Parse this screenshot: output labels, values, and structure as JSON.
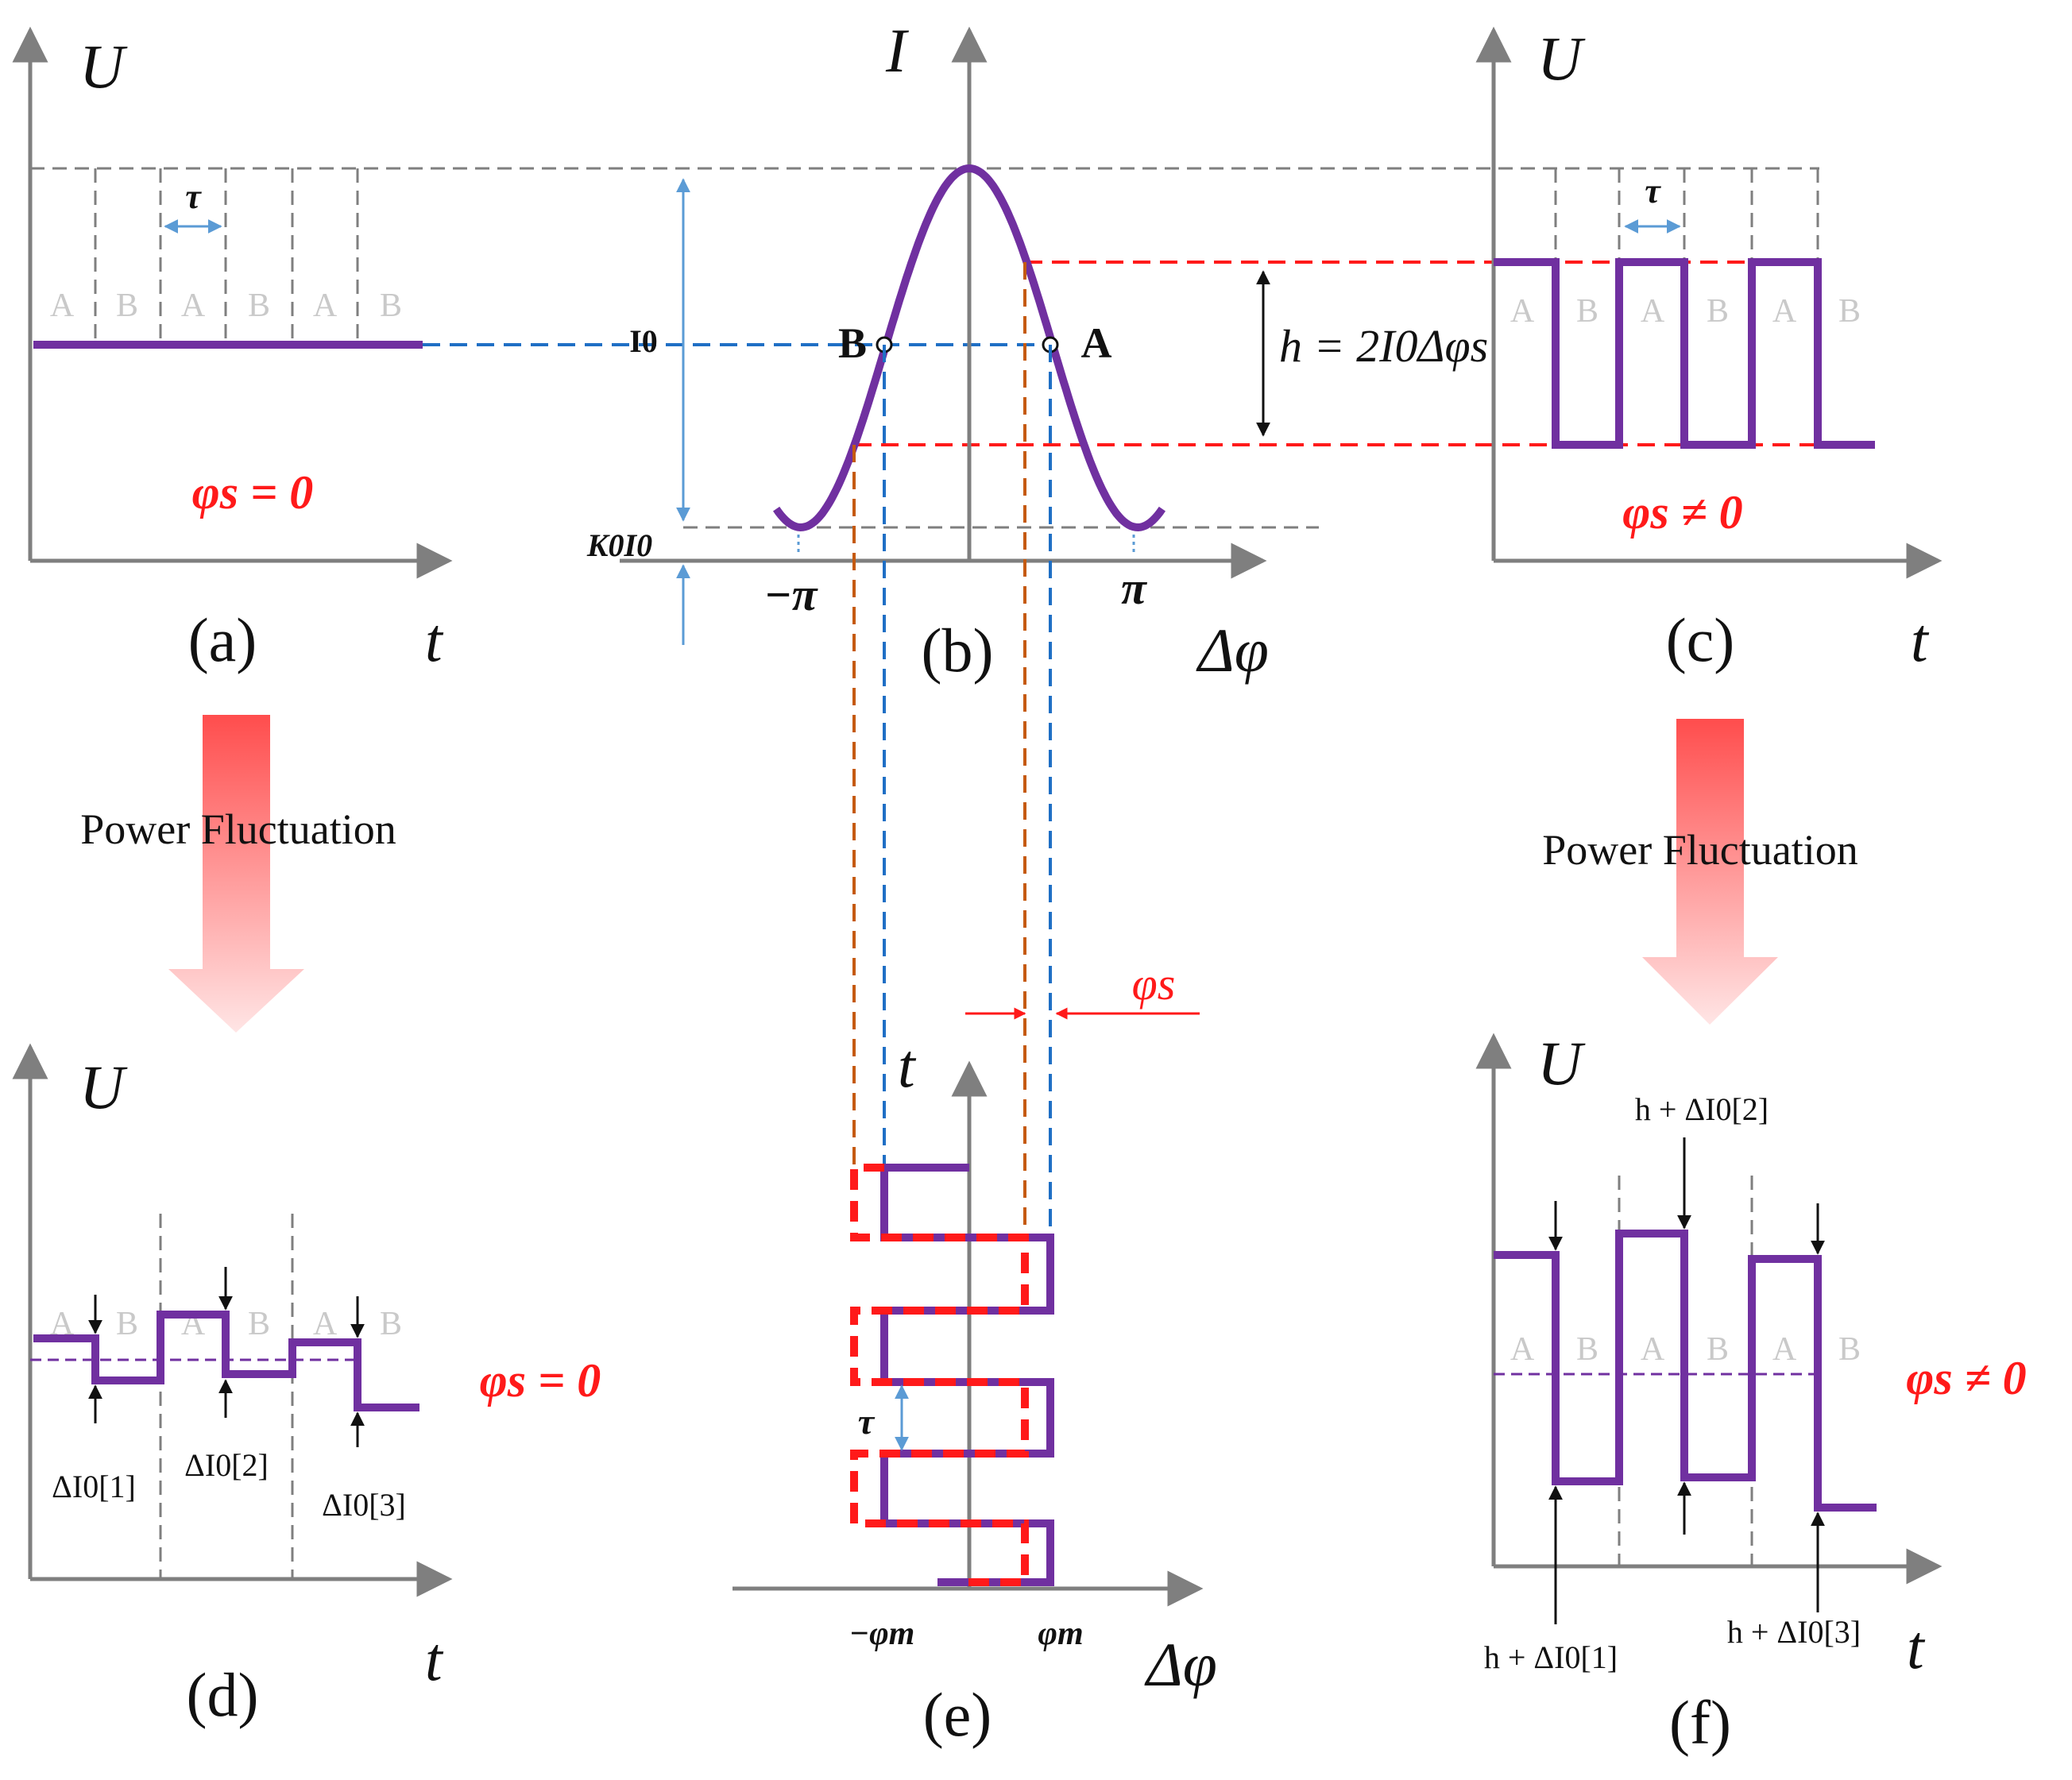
{
  "colors": {
    "signal": "#7030a0",
    "red": "#ff1a1a",
    "blue": "#1f6fc5",
    "orange": "#c55a11",
    "grid": "#7f7f7f",
    "axis": "#7f7f7f",
    "arrow_blue": "#5b9bd5"
  },
  "panels": {
    "a": {
      "label": "(a)",
      "y_axis": "U",
      "x_axis": "t",
      "tau": "τ",
      "slots": [
        "A",
        "B",
        "A",
        "B",
        "A",
        "B"
      ],
      "condition": "φs = 0"
    },
    "b": {
      "label": "(b)",
      "y_axis": "I",
      "x_axis": "Δφ",
      "i0_label": "I0",
      "k0i0_label": "K0I0",
      "neg_pi": "−π",
      "pos_pi": "π",
      "point_a": "A",
      "point_b": "B",
      "h_formula": "h = 2I0Δφs"
    },
    "c": {
      "label": "(c)",
      "y_axis": "U",
      "x_axis": "t",
      "tau": "τ",
      "slots": [
        "A",
        "B",
        "A",
        "B",
        "A",
        "B"
      ],
      "condition": "φs ≠ 0"
    },
    "d": {
      "label": "(d)",
      "y_axis": "U",
      "x_axis": "t",
      "slots": [
        "A",
        "B",
        "A",
        "B",
        "A",
        "B"
      ],
      "condition": "φs = 0",
      "fluct_labels": [
        "ΔI0[1]",
        "ΔI0[2]",
        "ΔI0[3]"
      ],
      "levels_high": [
        0.62,
        0.68,
        0.6
      ],
      "levels_low": [
        0.52,
        0.54,
        0.48
      ]
    },
    "e": {
      "label": "(e)",
      "y_axis": "t",
      "x_axis": "Δφ",
      "tau": "τ",
      "phi_s": "φs",
      "neg_phi_m": "−φm",
      "phi_m": "φm"
    },
    "f": {
      "label": "(f)",
      "y_axis": "U",
      "x_axis": "t",
      "slots": [
        "A",
        "B",
        "A",
        "B",
        "A",
        "B"
      ],
      "condition": "φs ≠ 0",
      "top_labels": [
        "h + ΔI0[2]"
      ],
      "bottom_labels": [
        "h + ΔI0[1]",
        "h + ΔI0[3]"
      ]
    }
  },
  "arrows": {
    "left": "Power Fluctuation",
    "right": "Power Fluctuation"
  },
  "chart_data": {
    "type": "line",
    "title": "",
    "xlabel": "Δφ",
    "ylabel": "I",
    "description_curve": "I = I0 (1 + cos Δφ) interference curve over [-π, π] with bias points A and B at I0",
    "x": [
      -3.6,
      -3.14159,
      -1.5708,
      0,
      1.5708,
      3.14159,
      3.6
    ],
    "y": [
      0.1,
      0.0,
      0.5,
      1.0,
      0.5,
      0.0,
      0.1
    ],
    "xlim": [
      -3.6,
      3.6
    ],
    "ylim": [
      0,
      1
    ]
  }
}
